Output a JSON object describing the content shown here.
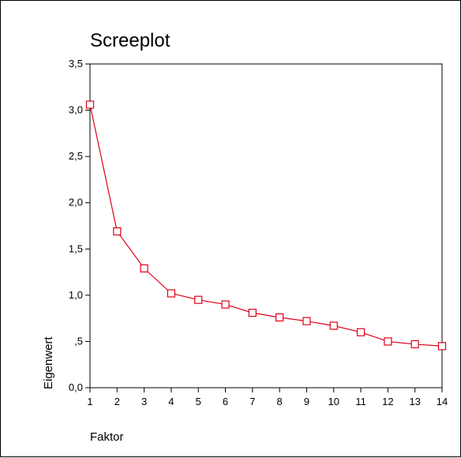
{
  "chart_data": {
    "type": "line",
    "title": "Screeplot",
    "xlabel": "Faktor",
    "ylabel": "Eigenwert",
    "x": [
      1,
      2,
      3,
      4,
      5,
      6,
      7,
      8,
      9,
      10,
      11,
      12,
      13,
      14
    ],
    "x_tick_labels": [
      "1",
      "2",
      "3",
      "4",
      "5",
      "6",
      "7",
      "8",
      "9",
      "10",
      "11",
      "12",
      "13",
      "14"
    ],
    "y_ticks": [
      0,
      0.5,
      1,
      1.5,
      2,
      2.5,
      3,
      3.5
    ],
    "y_tick_labels": [
      "0,0",
      ",5",
      "1,0",
      "1,5",
      "2,0",
      "2,5",
      "3,0",
      "3,5"
    ],
    "ylim": [
      0,
      3.5
    ],
    "xlim": [
      1,
      14
    ],
    "series": [
      {
        "values": [
          3.06,
          1.69,
          1.29,
          1.02,
          0.95,
          0.9,
          0.81,
          0.76,
          0.72,
          0.67,
          0.6,
          0.5,
          0.47,
          0.45
        ]
      }
    ],
    "line_color": "#e0001a",
    "marker": "square",
    "grid": false,
    "legend": "none"
  }
}
